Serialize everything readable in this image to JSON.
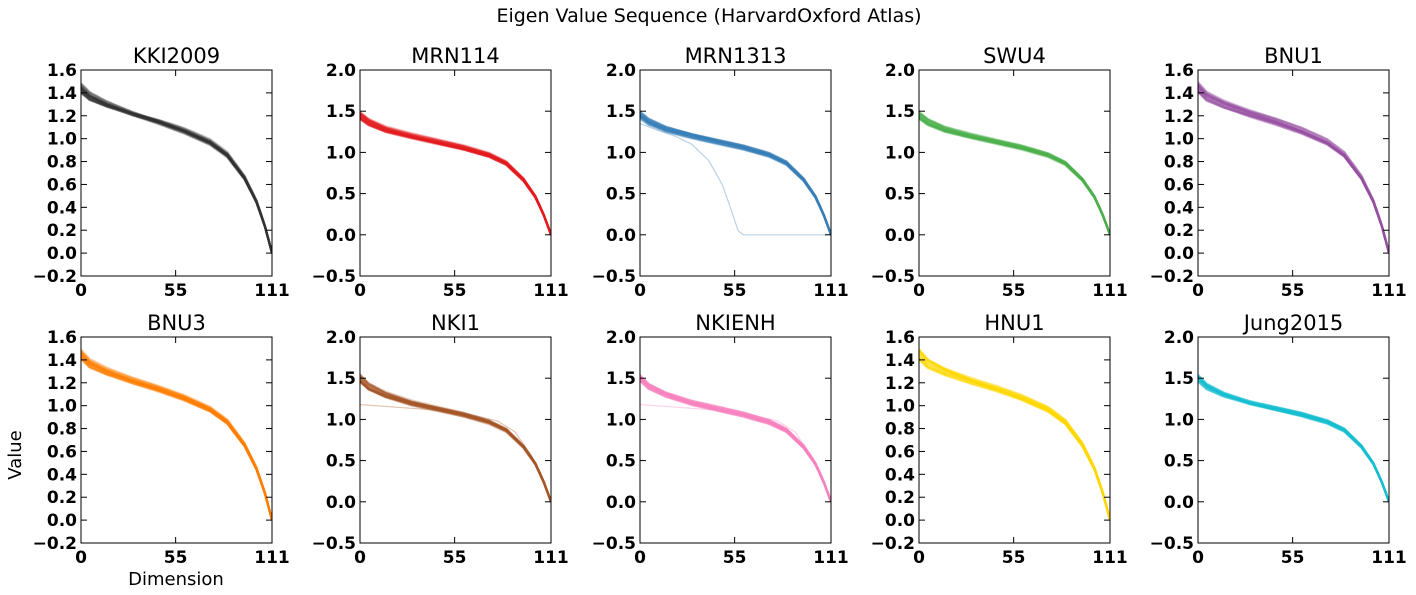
{
  "figure": {
    "suptitle": "Eigen Value Sequence (HarvardOxford Atlas)",
    "xlabel": "Dimension",
    "ylabel": "Value"
  },
  "chart_data": [
    {
      "type": "line",
      "title": "KKI2009",
      "color": "#333333",
      "xlim": [
        0,
        111
      ],
      "ylim": [
        -0.2,
        1.6
      ],
      "xticks": [
        0,
        55,
        111
      ],
      "yticks": [
        -0.2,
        0.0,
        0.2,
        0.4,
        0.6,
        0.8,
        1.0,
        1.2,
        1.4,
        1.6
      ],
      "ytick_labels": [
        "−0.2",
        "0.0",
        "0.2",
        "0.4",
        "0.6",
        "0.8",
        "1.0",
        "1.2",
        "1.4",
        "1.6"
      ],
      "curve": {
        "x": [
          0,
          5,
          15,
          30,
          45,
          60,
          75,
          85,
          95,
          102,
          107,
          111
        ],
        "y": [
          1.44,
          1.37,
          1.3,
          1.22,
          1.15,
          1.07,
          0.97,
          0.86,
          0.66,
          0.45,
          0.23,
          0.0
        ]
      }
    },
    {
      "type": "line",
      "title": "MRN114",
      "color": "#e41a1c",
      "xlim": [
        0,
        111
      ],
      "ylim": [
        -0.5,
        2.0
      ],
      "xticks": [
        0,
        55,
        111
      ],
      "yticks": [
        -0.5,
        0.0,
        0.5,
        1.0,
        1.5,
        2.0
      ],
      "ytick_labels": [
        "−0.5",
        "0.0",
        "0.5",
        "1.0",
        "1.5",
        "2.0"
      ],
      "curve": {
        "x": [
          0,
          5,
          15,
          30,
          45,
          60,
          75,
          85,
          95,
          102,
          107,
          111
        ],
        "y": [
          1.45,
          1.37,
          1.28,
          1.2,
          1.13,
          1.06,
          0.97,
          0.87,
          0.67,
          0.46,
          0.23,
          0.0
        ]
      }
    },
    {
      "type": "line",
      "title": "MRN1313",
      "color": "#377eb8",
      "xlim": [
        0,
        111
      ],
      "ylim": [
        -0.5,
        2.0
      ],
      "xticks": [
        0,
        55,
        111
      ],
      "yticks": [
        -0.5,
        0.0,
        0.5,
        1.0,
        1.5,
        2.0
      ],
      "ytick_labels": [
        "−0.5",
        "0.0",
        "0.5",
        "1.0",
        "1.5",
        "2.0"
      ],
      "curve": {
        "x": [
          0,
          5,
          15,
          30,
          45,
          60,
          75,
          85,
          95,
          102,
          107,
          111
        ],
        "y": [
          1.45,
          1.37,
          1.28,
          1.2,
          1.13,
          1.06,
          0.97,
          0.87,
          0.67,
          0.46,
          0.23,
          0.0
        ]
      },
      "outlier": {
        "x": [
          0,
          10,
          20,
          30,
          40,
          48,
          53,
          57,
          60,
          80,
          100,
          111
        ],
        "y": [
          1.35,
          1.27,
          1.2,
          1.1,
          0.9,
          0.6,
          0.3,
          0.05,
          0.0,
          0.0,
          0.0,
          0.0
        ]
      }
    },
    {
      "type": "line",
      "title": "SWU4",
      "color": "#4daf4a",
      "xlim": [
        0,
        111
      ],
      "ylim": [
        -0.5,
        2.0
      ],
      "xticks": [
        0,
        55,
        111
      ],
      "yticks": [
        -0.5,
        0.0,
        0.5,
        1.0,
        1.5,
        2.0
      ],
      "ytick_labels": [
        "−0.5",
        "0.0",
        "0.5",
        "1.0",
        "1.5",
        "2.0"
      ],
      "curve": {
        "x": [
          0,
          5,
          15,
          30,
          45,
          60,
          75,
          85,
          95,
          102,
          107,
          111
        ],
        "y": [
          1.45,
          1.37,
          1.28,
          1.2,
          1.13,
          1.06,
          0.97,
          0.87,
          0.67,
          0.46,
          0.23,
          0.0
        ]
      }
    },
    {
      "type": "line",
      "title": "BNU1",
      "color": "#984ea3",
      "xlim": [
        0,
        111
      ],
      "ylim": [
        -0.2,
        1.6
      ],
      "xticks": [
        0,
        55,
        111
      ],
      "yticks": [
        -0.2,
        0.0,
        0.2,
        0.4,
        0.6,
        0.8,
        1.0,
        1.2,
        1.4,
        1.6
      ],
      "ytick_labels": [
        "−0.2",
        "0.0",
        "0.2",
        "0.4",
        "0.6",
        "0.8",
        "1.0",
        "1.2",
        "1.4",
        "1.6"
      ],
      "curve": {
        "x": [
          0,
          5,
          15,
          30,
          45,
          60,
          75,
          85,
          95,
          102,
          107,
          111
        ],
        "y": [
          1.45,
          1.37,
          1.3,
          1.22,
          1.15,
          1.07,
          0.97,
          0.86,
          0.66,
          0.45,
          0.23,
          0.0
        ]
      }
    },
    {
      "type": "line",
      "title": "BNU3",
      "color": "#ff7f00",
      "xlim": [
        0,
        111
      ],
      "ylim": [
        -0.2,
        1.6
      ],
      "xticks": [
        0,
        55,
        111
      ],
      "yticks": [
        -0.2,
        0.0,
        0.2,
        0.4,
        0.6,
        0.8,
        1.0,
        1.2,
        1.4,
        1.6
      ],
      "ytick_labels": [
        "−0.2",
        "0.0",
        "0.2",
        "0.4",
        "0.6",
        "0.8",
        "1.0",
        "1.2",
        "1.4",
        "1.6"
      ],
      "curve": {
        "x": [
          0,
          5,
          15,
          30,
          45,
          60,
          75,
          85,
          95,
          102,
          107,
          111
        ],
        "y": [
          1.45,
          1.37,
          1.3,
          1.22,
          1.15,
          1.07,
          0.97,
          0.86,
          0.66,
          0.45,
          0.23,
          0.0
        ]
      }
    },
    {
      "type": "line",
      "title": "NKI1",
      "color": "#a65628",
      "xlim": [
        0,
        111
      ],
      "ylim": [
        -0.5,
        2.0
      ],
      "xticks": [
        0,
        55,
        111
      ],
      "yticks": [
        -0.5,
        0.0,
        0.5,
        1.0,
        1.5,
        2.0
      ],
      "ytick_labels": [
        "−0.5",
        "0.0",
        "0.5",
        "1.0",
        "1.5",
        "2.0"
      ],
      "curve": {
        "x": [
          0,
          5,
          15,
          30,
          45,
          60,
          75,
          85,
          95,
          102,
          107,
          111
        ],
        "y": [
          1.5,
          1.4,
          1.3,
          1.2,
          1.13,
          1.06,
          0.97,
          0.87,
          0.67,
          0.46,
          0.23,
          0.0
        ]
      },
      "outlier": {
        "x": [
          0,
          20,
          40,
          60,
          80,
          90,
          100,
          105,
          111
        ],
        "y": [
          1.18,
          1.15,
          1.12,
          1.08,
          0.98,
          0.85,
          0.55,
          0.3,
          0.0
        ]
      }
    },
    {
      "type": "line",
      "title": "NKIENH",
      "color": "#f781bf",
      "xlim": [
        0,
        111
      ],
      "ylim": [
        -0.5,
        2.0
      ],
      "xticks": [
        0,
        55,
        111
      ],
      "yticks": [
        -0.5,
        0.0,
        0.5,
        1.0,
        1.5,
        2.0
      ],
      "ytick_labels": [
        "−0.5",
        "0.0",
        "0.5",
        "1.0",
        "1.5",
        "2.0"
      ],
      "curve": {
        "x": [
          0,
          5,
          15,
          30,
          45,
          60,
          75,
          85,
          95,
          102,
          107,
          111
        ],
        "y": [
          1.5,
          1.4,
          1.3,
          1.2,
          1.13,
          1.06,
          0.97,
          0.87,
          0.67,
          0.46,
          0.23,
          0.0
        ]
      },
      "outlier": {
        "x": [
          0,
          20,
          40,
          60,
          80,
          90,
          100,
          105,
          111
        ],
        "y": [
          1.18,
          1.15,
          1.12,
          1.08,
          0.98,
          0.85,
          0.55,
          0.3,
          0.0
        ]
      }
    },
    {
      "type": "line",
      "title": "HNU1",
      "color": "#ffd700",
      "xlim": [
        0,
        111
      ],
      "ylim": [
        -0.2,
        1.6
      ],
      "xticks": [
        0,
        55,
        111
      ],
      "yticks": [
        -0.2,
        0.0,
        0.2,
        0.4,
        0.6,
        0.8,
        1.0,
        1.2,
        1.4,
        1.6
      ],
      "ytick_labels": [
        "−0.2",
        "0.0",
        "0.2",
        "0.4",
        "0.6",
        "0.8",
        "1.0",
        "1.2",
        "1.4",
        "1.6"
      ],
      "curve": {
        "x": [
          0,
          5,
          15,
          30,
          45,
          60,
          75,
          85,
          95,
          102,
          107,
          111
        ],
        "y": [
          1.45,
          1.37,
          1.3,
          1.22,
          1.15,
          1.07,
          0.97,
          0.86,
          0.66,
          0.45,
          0.23,
          0.0
        ]
      }
    },
    {
      "type": "line",
      "title": "Jung2015",
      "color": "#17becf",
      "xlim": [
        0,
        111
      ],
      "ylim": [
        -0.5,
        2.0
      ],
      "xticks": [
        0,
        55,
        111
      ],
      "yticks": [
        -0.5,
        0.0,
        0.5,
        1.0,
        1.5,
        2.0
      ],
      "ytick_labels": [
        "−0.5",
        "0.0",
        "0.5",
        "1.0",
        "1.5",
        "2.0"
      ],
      "curve": {
        "x": [
          0,
          5,
          15,
          30,
          45,
          60,
          75,
          85,
          95,
          102,
          107,
          111
        ],
        "y": [
          1.5,
          1.4,
          1.3,
          1.2,
          1.13,
          1.06,
          0.97,
          0.87,
          0.67,
          0.46,
          0.23,
          0.0
        ]
      }
    }
  ]
}
